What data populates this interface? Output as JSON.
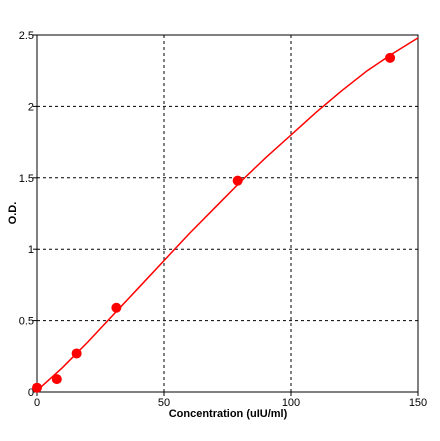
{
  "chart_data": {
    "type": "scatter",
    "title": "",
    "xlabel": "Concentration (uIU/ml)",
    "ylabel": "O.D.",
    "xlim": [
      0,
      150
    ],
    "ylim": [
      0,
      2.5
    ],
    "xticks": [
      "0",
      "50",
      "100",
      "150"
    ],
    "yticks": [
      "0",
      "0.5",
      "1",
      "1.5",
      "2",
      "2.5"
    ],
    "grid": true,
    "legend": "none",
    "series": [
      {
        "x": [
          0,
          7.8,
          15.6,
          31.25,
          79,
          139
        ],
        "y": [
          0.03,
          0.09,
          0.27,
          0.59,
          1.48,
          2.34
        ],
        "marker_color": "#ff0000"
      }
    ],
    "fit_curve": {
      "x": [
        0,
        10,
        20,
        30,
        40,
        50,
        60,
        70,
        80,
        90,
        100,
        110,
        120,
        130,
        140,
        150
      ],
      "y": [
        0.01,
        0.17,
        0.35,
        0.54,
        0.73,
        0.92,
        1.11,
        1.29,
        1.47,
        1.64,
        1.8,
        1.96,
        2.11,
        2.25,
        2.37,
        2.48
      ],
      "color": "#ff0000"
    }
  }
}
